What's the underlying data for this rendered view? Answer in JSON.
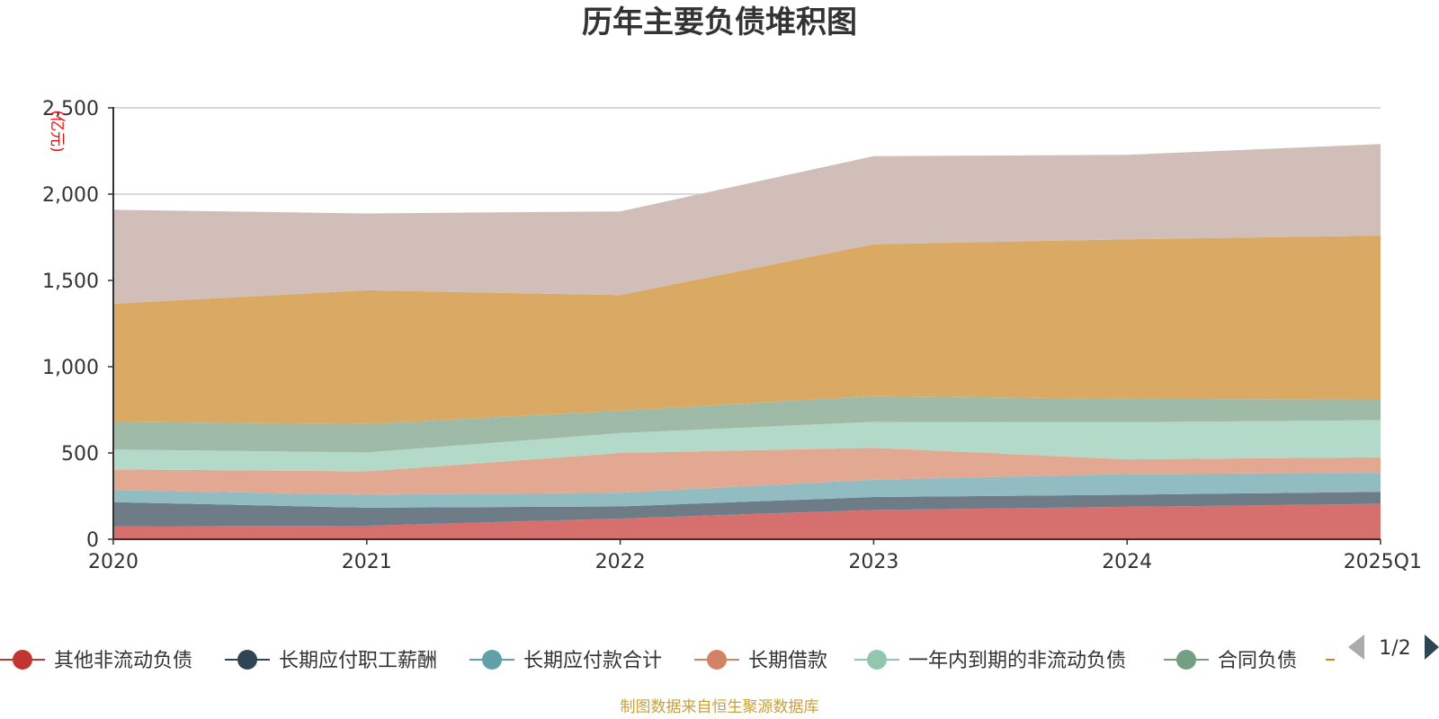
{
  "chart_data": {
    "type": "area",
    "stacked": true,
    "title": "历年主要负债堆积图",
    "ylabel": "(亿元)",
    "xlabel": "",
    "ylim": [
      0,
      2500
    ],
    "yticks": [
      "0",
      "500",
      "1,000",
      "1,500",
      "2,000",
      "2,500"
    ],
    "ytick_values": [
      0,
      500,
      1000,
      1500,
      2000,
      2500
    ],
    "categories": [
      "2020",
      "2021",
      "2022",
      "2023",
      "2024",
      "2025Q1"
    ],
    "grid": true,
    "legend_position": "bottom",
    "series": [
      {
        "name": "其他非流动负债",
        "color": "#c23531",
        "fill": "#d5706e",
        "values": [
          75,
          78,
          120,
          170,
          188,
          205
        ]
      },
      {
        "name": "长期应付职工薪酬",
        "color": "#2f4554",
        "fill": "#6e7c88",
        "values": [
          140,
          105,
          70,
          75,
          70,
          70
        ]
      },
      {
        "name": "长期应付款合计",
        "color": "#61a0a8",
        "fill": "#91bcc1",
        "values": [
          70,
          75,
          80,
          100,
          120,
          110
        ]
      },
      {
        "name": "长期借款",
        "color": "#d48265",
        "fill": "#e2a892",
        "values": [
          120,
          135,
          230,
          185,
          85,
          90
        ]
      },
      {
        "name": "一年内到期的非流动负债",
        "color": "#91c7ae",
        "fill": "#b3dac8",
        "values": [
          115,
          110,
          115,
          150,
          215,
          215
        ]
      },
      {
        "name": "合同负债",
        "color": "#749f83",
        "fill": "#9fbaa7",
        "values": [
          160,
          165,
          130,
          150,
          135,
          120
        ]
      },
      {
        "name": "",
        "color": "#ca8622",
        "fill": "#daa964",
        "values": [
          685,
          775,
          670,
          880,
          925,
          950
        ]
      },
      {
        "name": "",
        "color": "#bda29a",
        "fill": "#d1beb8",
        "values": [
          545,
          445,
          485,
          510,
          490,
          530
        ]
      }
    ]
  },
  "legend": {
    "items": [
      {
        "label": "其他非流动负债",
        "color": "#c23531"
      },
      {
        "label": "长期应付职工薪酬",
        "color": "#2f4554"
      },
      {
        "label": "长期应付款合计",
        "color": "#61a0a8"
      },
      {
        "label": "长期借款",
        "color": "#d48265"
      },
      {
        "label": "一年内到期的非流动负债",
        "color": "#91c7ae"
      },
      {
        "label": "合同负债",
        "color": "#749f83"
      }
    ],
    "partial_color": "#ca8622",
    "pager": "1/2"
  },
  "source": "制图数据来自恒生聚源数据库"
}
